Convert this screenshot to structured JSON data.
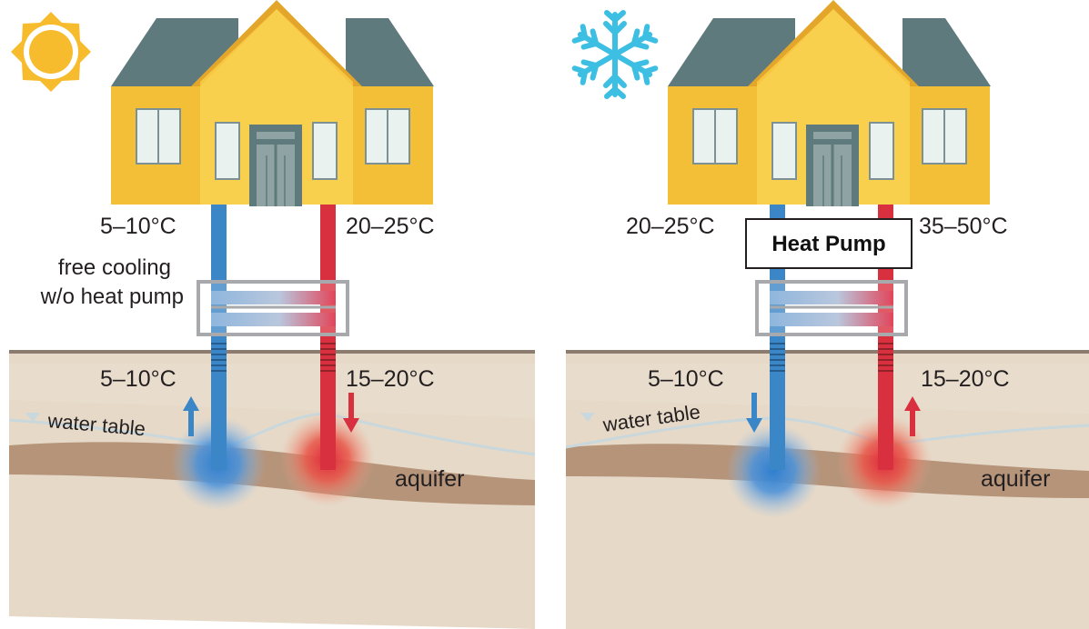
{
  "summer": {
    "icon": "sun-icon",
    "house_temp_left": "5–10°C",
    "house_temp_right": "20–25°C",
    "mode_label_line1": "free cooling",
    "mode_label_line2": "w/o heat pump",
    "ground_temp_left": "5–10°C",
    "ground_temp_right": "15–20°C",
    "water_table": "water table",
    "aquifer": "aquifer"
  },
  "winter": {
    "icon": "snowflake-icon",
    "house_temp_left": "20–25°C",
    "house_temp_right": "35–50°C",
    "heat_pump": "Heat Pump",
    "ground_temp_left": "5–10°C",
    "ground_temp_right": "15–20°C",
    "water_table": "water table",
    "aquifer": "aquifer"
  },
  "colors": {
    "cold_pipe": "#3b86c6",
    "warm_pipe": "#d9303f",
    "house_wall": "#f7c742",
    "roof": "#5f7a7c",
    "ground": "#e6d9c8",
    "aquifer": "#b5947a",
    "sun": "#f6bc2e",
    "snowflake": "#3cbfe3"
  }
}
